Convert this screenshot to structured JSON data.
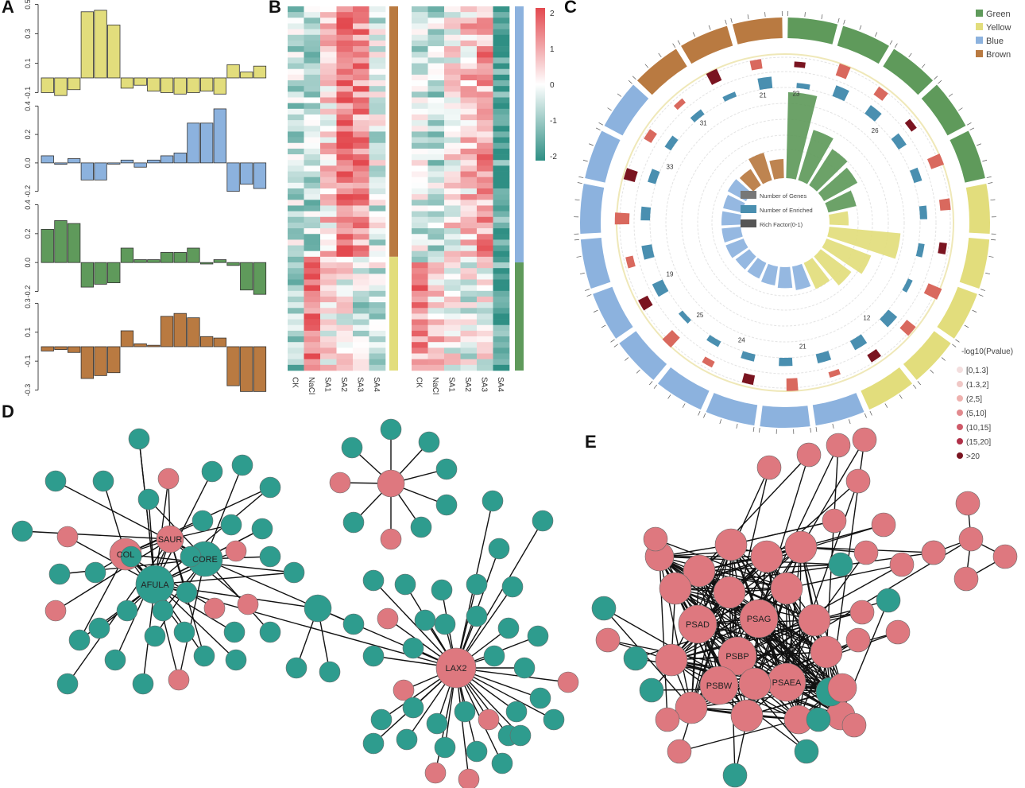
{
  "panels": {
    "a": "A",
    "b": "B",
    "c": "C",
    "d": "D",
    "e": "E"
  },
  "colors": {
    "yellow": "#e2dd7c",
    "blue": "#8cb2de",
    "green": "#5f9a5b",
    "brown": "#b97a41",
    "heat_low": "#2f8f84",
    "heat_mid": "#ffffff",
    "heat_high": "#e3494f",
    "node_teal": "#2e9c8e",
    "node_pink": "#de787f",
    "dark_red": "#7a1420"
  },
  "panel_a": {
    "charts": [
      {
        "color": "yellow",
        "ticks": [
          "0.5",
          "0.3",
          "0.1",
          "-0.1"
        ],
        "values": [
          -0.1,
          -0.12,
          -0.08,
          0.45,
          0.46,
          0.36,
          -0.07,
          -0.05,
          -0.09,
          -0.1,
          -0.11,
          -0.1,
          -0.09,
          -0.11,
          0.09,
          0.04,
          0.08
        ]
      },
      {
        "color": "blue",
        "ticks": [
          "0.4",
          "0.2",
          "0.0",
          "-0.2"
        ],
        "values": [
          0.05,
          -0.01,
          0.03,
          -0.12,
          -0.12,
          0.0,
          0.02,
          -0.03,
          0.02,
          0.05,
          0.07,
          0.28,
          0.28,
          0.38,
          -0.2,
          -0.15,
          -0.18
        ]
      },
      {
        "color": "green",
        "ticks": [
          "0.4",
          "0.2",
          "0.0",
          "-0.2"
        ],
        "values": [
          0.23,
          0.29,
          0.27,
          -0.17,
          -0.15,
          -0.14,
          0.1,
          0.02,
          0.02,
          0.07,
          0.07,
          0.1,
          -0.01,
          0.02,
          -0.02,
          -0.19,
          -0.22
        ]
      },
      {
        "color": "brown",
        "ticks": [
          "0.3",
          "0.1",
          "-0.1",
          "-0.3"
        ],
        "values": [
          -0.03,
          -0.02,
          -0.04,
          -0.22,
          -0.2,
          -0.18,
          0.11,
          0.02,
          0.01,
          0.21,
          0.23,
          0.2,
          0.07,
          0.06,
          -0.27,
          -0.31,
          -0.31
        ]
      }
    ]
  },
  "panel_b": {
    "left_cols": [
      "CK",
      "NaCl",
      "SA1",
      "SA2",
      "SA3",
      "SA4"
    ],
    "right_cols": [
      "CK",
      "NaCl",
      "SA1",
      "SA2",
      "SA3",
      "SA4"
    ],
    "scale": [
      "2",
      "1",
      "0",
      "-1",
      "-2"
    ],
    "left_modules": [
      "brown",
      "yellow"
    ],
    "right_modules": [
      "blue",
      "green"
    ]
  },
  "panel_c": {
    "legend": [
      {
        "label": "Green",
        "color": "#5f9a5b"
      },
      {
        "label": "Yellow",
        "color": "#e2dd7c"
      },
      {
        "label": "Blue",
        "color": "#8cb2de"
      },
      {
        "label": "Brown",
        "color": "#b97a41"
      }
    ],
    "inner_legend": [
      {
        "label": "Number of Genes",
        "color": "#777777"
      },
      {
        "label": "Number of Enriched",
        "color": "#4a8fb0"
      },
      {
        "label": "Rich Factor(0-1)",
        "color": "#555555"
      }
    ],
    "pvalue_title": "-log10(Pvalue)",
    "pvalue_legend": [
      {
        "label": "[0,1.3]",
        "color": "#f3dede"
      },
      {
        "label": "(1.3,2]",
        "color": "#f0c8c6"
      },
      {
        "label": "(2,5]",
        "color": "#eeb1ae"
      },
      {
        "label": "(5,10]",
        "color": "#e28a8e"
      },
      {
        "label": "(10,15]",
        "color": "#cf5a69"
      },
      {
        "label": "(15,20]",
        "color": "#b03048"
      },
      {
        "label": ">20",
        "color": "#7a1420"
      }
    ],
    "rich_values": [
      {
        "module": "green",
        "value": 0.9
      },
      {
        "module": "green",
        "value": 0.55
      },
      {
        "module": "green",
        "value": 0.45
      },
      {
        "module": "green",
        "value": 0.4
      },
      {
        "module": "green",
        "value": 0.3
      },
      {
        "module": "yellow",
        "value": 0.2
      },
      {
        "module": "yellow",
        "value": 0.75
      },
      {
        "module": "yellow",
        "value": 0.5
      },
      {
        "module": "yellow",
        "value": 0.4
      },
      {
        "module": "yellow",
        "value": 0.3
      },
      {
        "module": "blue",
        "value": 0.25
      },
      {
        "module": "blue",
        "value": 0.22
      },
      {
        "module": "blue",
        "value": 0.2
      },
      {
        "module": "blue",
        "value": 0.18
      },
      {
        "module": "blue",
        "value": 0.18
      },
      {
        "module": "blue",
        "value": 0.2
      },
      {
        "module": "blue",
        "value": 0.2
      },
      {
        "module": "blue",
        "value": 0.2
      },
      {
        "module": "blue",
        "value": 0.2
      },
      {
        "module": "blue",
        "value": 0.22
      },
      {
        "module": "brown",
        "value": 0.2
      },
      {
        "module": "brown",
        "value": 0.3
      },
      {
        "module": "brown",
        "value": 0.2
      }
    ],
    "bar_numbers": [
      "23",
      "26",
      "31",
      "21",
      "12",
      "21",
      "24",
      "25",
      "19",
      "33"
    ]
  },
  "panel_d": {
    "hubs": [
      "COL",
      "SAUR",
      "CORE",
      "AFULA",
      "LAX2"
    ]
  },
  "panel_e": {
    "hubs": [
      "PSAD",
      "PSAG",
      "PSBP",
      "PSBW",
      "PSAEA"
    ]
  }
}
